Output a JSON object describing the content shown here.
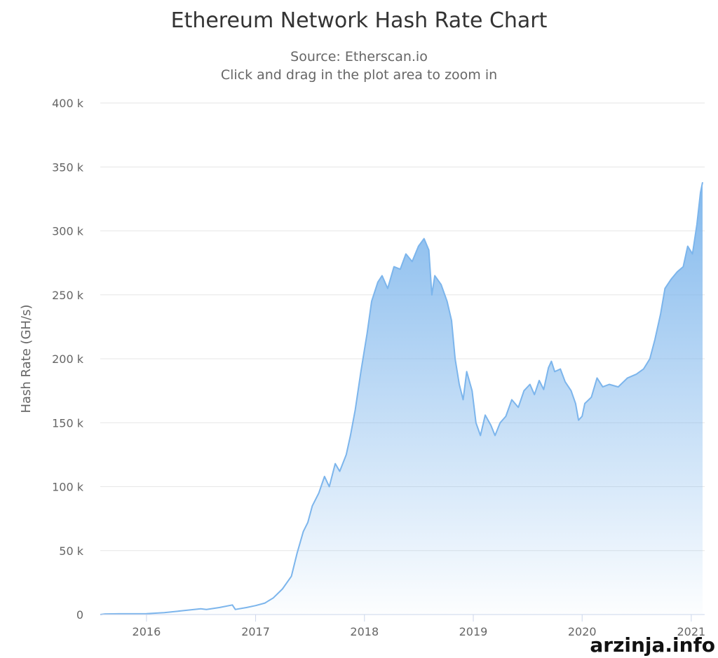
{
  "chart_data": {
    "type": "area",
    "title": "Ethereum Network Hash Rate Chart",
    "subtitle": "Source: Etherscan.io",
    "subtitle2": "Click and drag in the plot area to zoom in",
    "xlabel": "",
    "ylabel": "Hash Rate (GH/s)",
    "ylim": [
      0,
      400000
    ],
    "xlim": [
      "2015-07-30",
      "2021-02-15"
    ],
    "y_ticks": [
      {
        "value": 0,
        "label": "0"
      },
      {
        "value": 50000,
        "label": "50 k"
      },
      {
        "value": 100000,
        "label": "100 k"
      },
      {
        "value": 150000,
        "label": "150 k"
      },
      {
        "value": 200000,
        "label": "200 k"
      },
      {
        "value": 250000,
        "label": "250 k"
      },
      {
        "value": 300000,
        "label": "300 k"
      },
      {
        "value": 350000,
        "label": "350 k"
      },
      {
        "value": 400000,
        "label": "400 k"
      }
    ],
    "x_ticks": [
      {
        "date": "2016-01-01",
        "label": "2016"
      },
      {
        "date": "2017-01-01",
        "label": "2017"
      },
      {
        "date": "2018-01-01",
        "label": "2018"
      },
      {
        "date": "2019-01-01",
        "label": "2019"
      },
      {
        "date": "2020-01-01",
        "label": "2020"
      },
      {
        "date": "2021-01-01",
        "label": "2021"
      }
    ],
    "grid": true,
    "legend": "none",
    "colors": {
      "line": "#7cb5ec",
      "grid": "#e6e6e6"
    },
    "series": [
      {
        "points": [
          [
            "2015-07-30",
            0
          ],
          [
            "2015-08-15",
            500
          ],
          [
            "2015-10-01",
            600
          ],
          [
            "2016-01-01",
            700
          ],
          [
            "2016-03-01",
            1500
          ],
          [
            "2016-05-01",
            3000
          ],
          [
            "2016-07-01",
            4500
          ],
          [
            "2016-07-20",
            4000
          ],
          [
            "2016-09-01",
            5500
          ],
          [
            "2016-10-15",
            7500
          ],
          [
            "2016-10-25",
            4000
          ],
          [
            "2016-12-01",
            5500
          ],
          [
            "2017-01-01",
            7000
          ],
          [
            "2017-02-01",
            9000
          ],
          [
            "2017-03-01",
            13000
          ],
          [
            "2017-04-01",
            20000
          ],
          [
            "2017-05-01",
            30000
          ],
          [
            "2017-05-20",
            48000
          ],
          [
            "2017-06-10",
            65000
          ],
          [
            "2017-06-25",
            72000
          ],
          [
            "2017-07-10",
            85000
          ],
          [
            "2017-08-01",
            95000
          ],
          [
            "2017-08-20",
            108000
          ],
          [
            "2017-09-05",
            100000
          ],
          [
            "2017-09-25",
            118000
          ],
          [
            "2017-10-10",
            112000
          ],
          [
            "2017-11-01",
            125000
          ],
          [
            "2017-11-15",
            140000
          ],
          [
            "2017-12-01",
            160000
          ],
          [
            "2017-12-20",
            190000
          ],
          [
            "2018-01-10",
            220000
          ],
          [
            "2018-01-25",
            245000
          ],
          [
            "2018-02-15",
            260000
          ],
          [
            "2018-03-01",
            265000
          ],
          [
            "2018-03-20",
            255000
          ],
          [
            "2018-04-10",
            272000
          ],
          [
            "2018-05-01",
            270000
          ],
          [
            "2018-05-20",
            282000
          ],
          [
            "2018-06-10",
            276000
          ],
          [
            "2018-07-01",
            288000
          ],
          [
            "2018-07-20",
            294000
          ],
          [
            "2018-08-05",
            285000
          ],
          [
            "2018-08-15",
            250000
          ],
          [
            "2018-08-25",
            265000
          ],
          [
            "2018-09-15",
            258000
          ],
          [
            "2018-10-05",
            245000
          ],
          [
            "2018-10-20",
            230000
          ],
          [
            "2018-11-01",
            200000
          ],
          [
            "2018-11-15",
            180000
          ],
          [
            "2018-11-28",
            168000
          ],
          [
            "2018-12-10",
            190000
          ],
          [
            "2018-12-28",
            175000
          ],
          [
            "2019-01-10",
            150000
          ],
          [
            "2019-01-25",
            140000
          ],
          [
            "2019-02-10",
            156000
          ],
          [
            "2019-03-01",
            148000
          ],
          [
            "2019-03-15",
            140000
          ],
          [
            "2019-04-01",
            150000
          ],
          [
            "2019-04-20",
            155000
          ],
          [
            "2019-05-10",
            168000
          ],
          [
            "2019-06-01",
            162000
          ],
          [
            "2019-06-20",
            175000
          ],
          [
            "2019-07-10",
            180000
          ],
          [
            "2019-07-25",
            172000
          ],
          [
            "2019-08-10",
            183000
          ],
          [
            "2019-08-25",
            176000
          ],
          [
            "2019-09-10",
            193000
          ],
          [
            "2019-09-20",
            198000
          ],
          [
            "2019-10-01",
            190000
          ],
          [
            "2019-10-20",
            192000
          ],
          [
            "2019-11-05",
            182000
          ],
          [
            "2019-11-25",
            175000
          ],
          [
            "2019-12-10",
            165000
          ],
          [
            "2019-12-20",
            152000
          ],
          [
            "2020-01-01",
            155000
          ],
          [
            "2020-01-10",
            165000
          ],
          [
            "2020-02-01",
            170000
          ],
          [
            "2020-02-20",
            185000
          ],
          [
            "2020-03-10",
            178000
          ],
          [
            "2020-04-01",
            180000
          ],
          [
            "2020-05-01",
            178000
          ],
          [
            "2020-06-01",
            185000
          ],
          [
            "2020-07-01",
            188000
          ],
          [
            "2020-07-25",
            192000
          ],
          [
            "2020-08-15",
            200000
          ],
          [
            "2020-09-01",
            215000
          ],
          [
            "2020-09-20",
            235000
          ],
          [
            "2020-10-05",
            255000
          ],
          [
            "2020-10-25",
            262000
          ],
          [
            "2020-11-15",
            268000
          ],
          [
            "2020-12-05",
            272000
          ],
          [
            "2020-12-20",
            288000
          ],
          [
            "2021-01-05",
            282000
          ],
          [
            "2021-01-20",
            305000
          ],
          [
            "2021-02-01",
            330000
          ],
          [
            "2021-02-08",
            338000
          ]
        ]
      }
    ]
  },
  "watermark": "arzinja.info"
}
